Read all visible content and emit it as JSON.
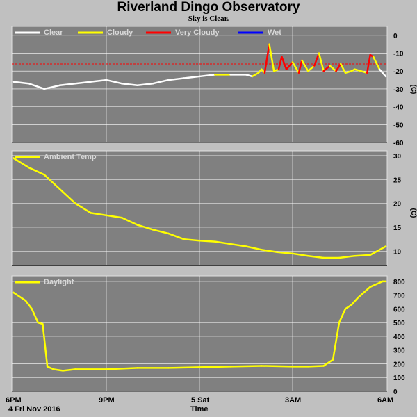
{
  "title": "Riverland Dingo Observatory",
  "subtitle": "Sky is Clear.",
  "x_axis": {
    "tick_labels": [
      "6PM",
      "9PM",
      "5 Sat",
      "3AM",
      "6AM"
    ],
    "start_label": "4 Fri Nov 2016",
    "label": "Time"
  },
  "chart_data": [
    {
      "type": "line",
      "name": "sky",
      "ylabel": "(C)",
      "ylim": [
        -60,
        5
      ],
      "yticks": [
        0,
        -10,
        -20,
        -30,
        -40,
        -50,
        -60
      ],
      "threshold_line": -16,
      "legend": [
        {
          "label": "Clear",
          "color": "#ffffff"
        },
        {
          "label": "Cloudy",
          "color": "#ffff00"
        },
        {
          "label": "Very Cloudy",
          "color": "#ff0000"
        },
        {
          "label": "Wet",
          "color": "#0000ff"
        }
      ],
      "x_hours": [
        0,
        0.5,
        1,
        1.5,
        2,
        2.5,
        3,
        3.5,
        4,
        4.5,
        5,
        5.5,
        6,
        6.5,
        7,
        7.5,
        7.7,
        7.9,
        8.0,
        8.1,
        8.25,
        8.4,
        8.55,
        8.65,
        8.8,
        9.0,
        9.2,
        9.3,
        9.5,
        9.7,
        9.85,
        10.0,
        10.2,
        10.4,
        10.55,
        10.7,
        10.9,
        11.0,
        11.2,
        11.4,
        11.5,
        11.6,
        11.8,
        12.0
      ],
      "values": [
        -26,
        -27,
        -30,
        -28,
        -27,
        -26,
        -25,
        -27,
        -28,
        -27,
        -25,
        -24,
        -23,
        -22,
        -22,
        -22,
        -23,
        -21,
        -19,
        -21,
        -5,
        -20,
        -19,
        -12,
        -19,
        -15,
        -21,
        -14,
        -20,
        -17,
        -10,
        -20,
        -17,
        -20,
        -16,
        -21,
        -20,
        -19,
        -20,
        -21,
        -11,
        -12,
        -19,
        -23
      ],
      "colors": [
        "#ffffff",
        "#ffffff",
        "#ffffff",
        "#ffffff",
        "#ffffff",
        "#ffffff",
        "#ffffff",
        "#ffffff",
        "#ffffff",
        "#ffffff",
        "#ffffff",
        "#ffffff",
        "#ffffff",
        "#ffffff",
        "#ffff00",
        "#ffffff",
        "#ffffff",
        "#ffff00",
        "#ffff00",
        "#ffff00",
        "#ff0000",
        "#ffff00",
        "#ffff00",
        "#ff0000",
        "#ff0000",
        "#ff0000",
        "#ffff00",
        "#ff0000",
        "#ffff00",
        "#ffff00",
        "#ff0000",
        "#ffff00",
        "#ff0000",
        "#ffff00",
        "#ff0000",
        "#ffff00",
        "#ffff00",
        "#ffff00",
        "#ffff00",
        "#ffff00",
        "#ff0000",
        "#ff0000",
        "#ffff00",
        "#ffffff"
      ]
    },
    {
      "type": "line",
      "name": "ambient",
      "ylabel": "(C)",
      "ylim": [
        7,
        31
      ],
      "yticks": [
        30,
        25,
        20,
        15,
        10
      ],
      "legend": [
        {
          "label": "Ambient Temp",
          "color": "#ffff00"
        }
      ],
      "x_hours": [
        0,
        0.5,
        1,
        1.5,
        2,
        2.5,
        3,
        3.5,
        4,
        4.5,
        5,
        5.5,
        6,
        6.5,
        7,
        7.5,
        8,
        8.5,
        9,
        9.5,
        10,
        10.5,
        11,
        11.5,
        12
      ],
      "values": [
        29.5,
        27.5,
        26,
        23,
        20,
        18,
        17.5,
        17,
        15.5,
        14.5,
        13.7,
        12.5,
        12.2,
        12,
        11.5,
        11,
        10.3,
        9.8,
        9.5,
        9,
        8.6,
        8.6,
        9,
        9.2,
        11
      ],
      "colors": [
        "#ffff00"
      ]
    },
    {
      "type": "line",
      "name": "daylight",
      "ylim": [
        0,
        840
      ],
      "yticks": [
        800,
        700,
        600,
        500,
        400,
        300,
        200,
        100,
        0
      ],
      "legend": [
        {
          "label": "Daylight",
          "color": "#ffff00"
        }
      ],
      "x_hours": [
        0,
        0.2,
        0.4,
        0.6,
        0.8,
        0.95,
        1.1,
        1.3,
        1.6,
        2,
        3,
        4,
        5,
        6,
        7,
        8,
        9,
        9.5,
        10,
        10.3,
        10.5,
        10.7,
        10.9,
        11.1,
        11.3,
        11.5,
        11.7,
        11.9,
        12
      ],
      "values": [
        720,
        690,
        660,
        600,
        500,
        490,
        180,
        160,
        150,
        160,
        160,
        170,
        170,
        175,
        180,
        185,
        180,
        180,
        185,
        230,
        500,
        600,
        630,
        680,
        720,
        760,
        780,
        800,
        800
      ],
      "colors": [
        "#ffff00"
      ]
    }
  ]
}
